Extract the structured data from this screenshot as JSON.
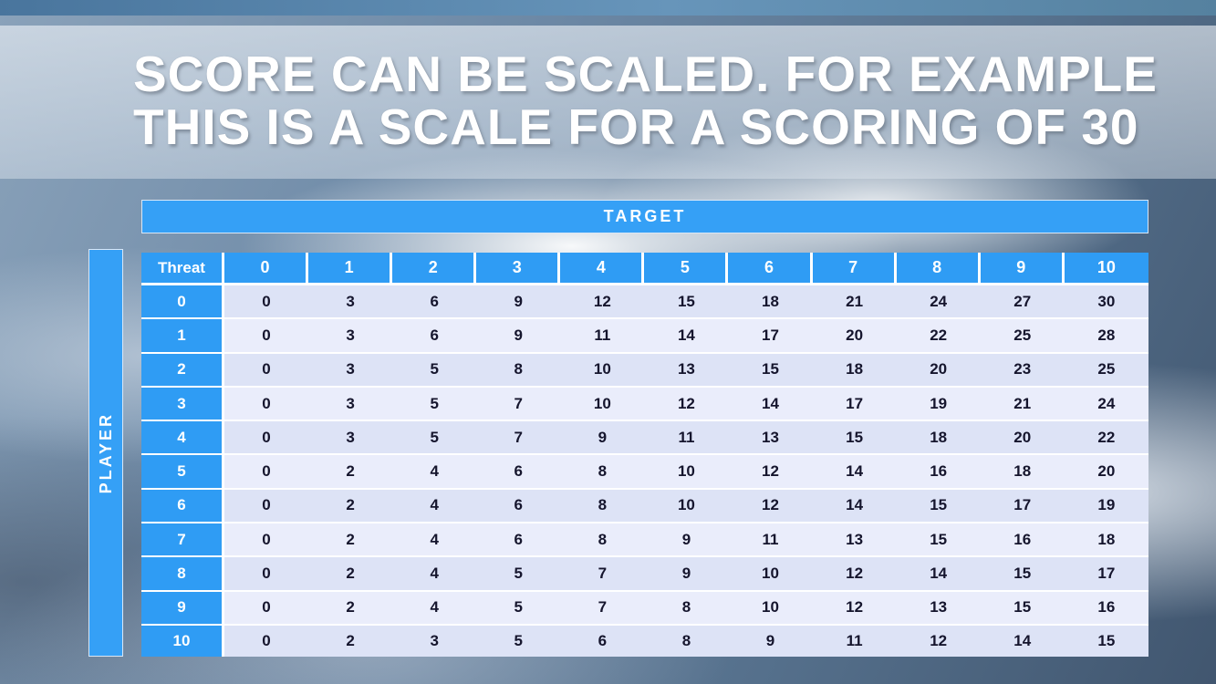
{
  "title": {
    "line1": "SCORE CAN BE SCALED. FOR EXAMPLE",
    "line2": "THIS IS A SCALE FOR A SCORING OF 30"
  },
  "table": {
    "target_label": "TARGET",
    "player_label": "PLAYER",
    "corner_label": "Threat",
    "column_headers": [
      "0",
      "1",
      "2",
      "3",
      "4",
      "5",
      "6",
      "7",
      "8",
      "9",
      "10"
    ],
    "rows": [
      {
        "header": "0",
        "values": [
          0,
          3,
          6,
          9,
          12,
          15,
          18,
          21,
          24,
          27,
          30
        ]
      },
      {
        "header": "1",
        "values": [
          0,
          3,
          6,
          9,
          11,
          14,
          17,
          20,
          22,
          25,
          28
        ]
      },
      {
        "header": "2",
        "values": [
          0,
          3,
          5,
          8,
          10,
          13,
          15,
          18,
          20,
          23,
          25
        ]
      },
      {
        "header": "3",
        "values": [
          0,
          3,
          5,
          7,
          10,
          12,
          14,
          17,
          19,
          21,
          24
        ]
      },
      {
        "header": "4",
        "values": [
          0,
          3,
          5,
          7,
          9,
          11,
          13,
          15,
          18,
          20,
          22
        ]
      },
      {
        "header": "5",
        "values": [
          0,
          2,
          4,
          6,
          8,
          10,
          12,
          14,
          16,
          18,
          20
        ]
      },
      {
        "header": "6",
        "values": [
          0,
          2,
          4,
          6,
          8,
          10,
          12,
          14,
          15,
          17,
          19
        ]
      },
      {
        "header": "7",
        "values": [
          0,
          2,
          4,
          6,
          8,
          9,
          11,
          13,
          15,
          16,
          18
        ]
      },
      {
        "header": "8",
        "values": [
          0,
          2,
          4,
          5,
          7,
          9,
          10,
          12,
          14,
          15,
          17
        ]
      },
      {
        "header": "9",
        "values": [
          0,
          2,
          4,
          5,
          7,
          8,
          10,
          12,
          13,
          15,
          16
        ]
      },
      {
        "header": "10",
        "values": [
          0,
          2,
          3,
          5,
          6,
          8,
          9,
          11,
          12,
          14,
          15
        ]
      }
    ]
  },
  "colors": {
    "header_blue": "#2f9cf4",
    "band_dark": "#dde3f6",
    "band_light": "#eaedfb",
    "title_text": "#ffffff"
  }
}
